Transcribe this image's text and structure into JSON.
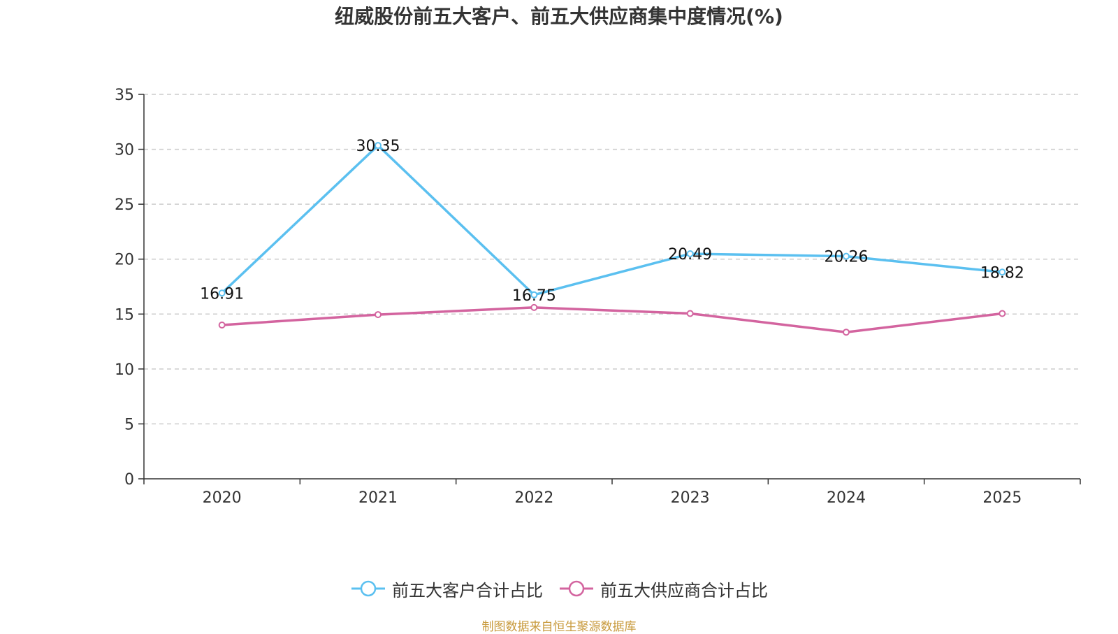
{
  "chart_data": {
    "type": "line",
    "title": "纽威股份前五大客户、前五大供应商集中度情况(%)",
    "categories": [
      "2020",
      "2021",
      "2022",
      "2023",
      "2024",
      "2025"
    ],
    "ylim": [
      0,
      35
    ],
    "yticks": [
      0,
      5,
      10,
      15,
      20,
      25,
      30,
      35
    ],
    "grid": true,
    "legend_position": "bottom",
    "xlabel": "",
    "ylabel": "",
    "series": [
      {
        "name": "前五大客户合计占比",
        "color": "#5bc0f0",
        "values": [
          16.91,
          30.35,
          16.75,
          20.49,
          20.26,
          18.82
        ],
        "value_labels": [
          "16.91",
          "30.35",
          "16.75",
          "20.49",
          "20.26",
          "18.82"
        ]
      },
      {
        "name": "前五大供应商合计占比",
        "color": "#d3649f",
        "values": [
          14.0,
          14.95,
          15.6,
          15.05,
          13.35,
          15.05
        ]
      }
    ]
  },
  "footer": {
    "source": "制图数据来自恒生聚源数据库"
  }
}
